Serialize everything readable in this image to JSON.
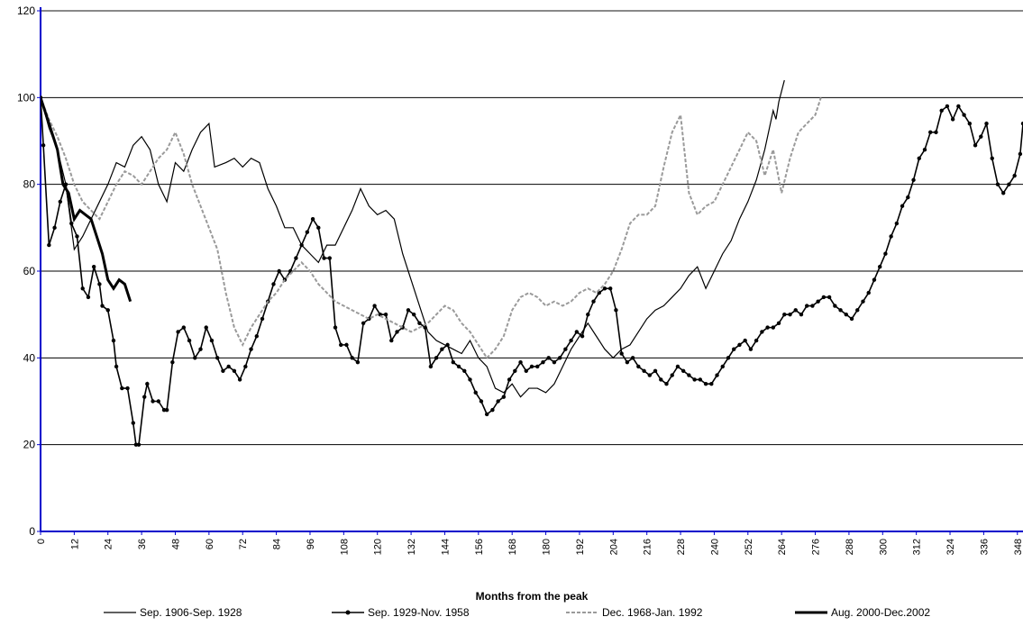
{
  "chart_data": {
    "type": "line",
    "x_label": "Months from the peak",
    "xlim": [
      0,
      350
    ],
    "ylim": [
      0,
      120
    ],
    "xticks": [
      0,
      12,
      24,
      36,
      48,
      60,
      72,
      84,
      96,
      108,
      120,
      132,
      144,
      156,
      168,
      180,
      192,
      204,
      216,
      228,
      240,
      252,
      264,
      276,
      288,
      300,
      312,
      324,
      336,
      348
    ],
    "yticks": [
      0,
      20,
      40,
      60,
      80,
      100,
      120
    ],
    "grid": true,
    "series": [
      {
        "name": "Sep. 1906-Sep. 1928",
        "color": "#000000",
        "line_width": 1.2,
        "markers": false,
        "dashed": false,
        "x": [
          0,
          3,
          6,
          9,
          12,
          15,
          18,
          21,
          24,
          27,
          30,
          33,
          36,
          39,
          42,
          45,
          48,
          51,
          54,
          57,
          60,
          62,
          66,
          69,
          72,
          75,
          78,
          81,
          84,
          87,
          90,
          93,
          96,
          99,
          102,
          105,
          108,
          111,
          114,
          117,
          120,
          123,
          126,
          129,
          132,
          135,
          138,
          141,
          144,
          147,
          150,
          153,
          156,
          159,
          162,
          165,
          168,
          171,
          174,
          177,
          180,
          183,
          186,
          189,
          192,
          195,
          198,
          201,
          204,
          207,
          210,
          213,
          216,
          219,
          222,
          225,
          228,
          231,
          234,
          237,
          240,
          243,
          246,
          249,
          252,
          255,
          258,
          261,
          262,
          263,
          265
        ],
        "values": [
          100,
          93,
          88,
          80,
          65,
          68,
          72,
          76,
          80,
          85,
          84,
          89,
          91,
          88,
          80,
          76,
          85,
          83,
          88,
          92,
          94,
          84,
          85,
          86,
          84,
          86,
          85,
          79,
          75,
          70,
          70,
          66,
          64,
          62,
          66,
          66,
          70,
          74,
          79,
          75,
          73,
          74,
          72,
          64,
          58,
          52,
          46,
          44,
          43,
          42,
          41,
          44,
          40,
          38,
          33,
          32,
          34,
          31,
          33,
          33,
          32,
          34,
          38,
          42,
          45,
          48,
          45,
          42,
          40,
          42,
          43,
          46,
          49,
          51,
          52,
          54,
          56,
          59,
          61,
          56,
          60,
          64,
          67,
          72,
          76,
          81,
          88,
          97,
          95,
          99,
          104
        ]
      },
      {
        "name": "Sep. 1929-Nov. 1958",
        "color": "#000000",
        "line_width": 1.6,
        "markers": true,
        "dashed": false,
        "x": [
          0,
          1,
          3,
          5,
          7,
          9,
          11,
          13,
          15,
          17,
          19,
          21,
          22,
          24,
          26,
          27,
          29,
          31,
          33,
          34,
          35,
          37,
          38,
          40,
          42,
          44,
          45,
          47,
          49,
          51,
          53,
          55,
          57,
          59,
          61,
          63,
          65,
          67,
          69,
          71,
          73,
          75,
          77,
          79,
          81,
          83,
          85,
          87,
          89,
          91,
          93,
          95,
          97,
          99,
          101,
          103,
          105,
          107,
          109,
          111,
          113,
          115,
          117,
          119,
          121,
          123,
          125,
          127,
          129,
          131,
          133,
          135,
          137,
          139,
          141,
          143,
          145,
          147,
          149,
          151,
          153,
          155,
          157,
          159,
          161,
          163,
          165,
          167,
          169,
          171,
          173,
          175,
          177,
          179,
          181,
          183,
          185,
          187,
          189,
          191,
          193,
          195,
          197,
          199,
          201,
          203,
          205,
          207,
          209,
          211,
          213,
          215,
          217,
          219,
          221,
          223,
          225,
          227,
          229,
          231,
          233,
          235,
          237,
          239,
          241,
          243,
          245,
          247,
          249,
          251,
          253,
          255,
          257,
          259,
          261,
          263,
          265,
          267,
          269,
          271,
          273,
          275,
          277,
          279,
          281,
          283,
          285,
          287,
          289,
          291,
          293,
          295,
          297,
          299,
          301,
          303,
          305,
          307,
          309,
          311,
          313,
          315,
          317,
          319,
          321,
          323,
          325,
          327,
          329,
          331,
          333,
          335,
          337,
          339,
          341,
          343,
          345,
          347,
          349,
          350
        ],
        "values": [
          100,
          89,
          66,
          70,
          76,
          80,
          71,
          68,
          56,
          54,
          61,
          57,
          52,
          51,
          44,
          38,
          33,
          33,
          25,
          20,
          20,
          31,
          34,
          30,
          30,
          28,
          28,
          39,
          46,
          47,
          44,
          40,
          42,
          47,
          44,
          40,
          37,
          38,
          37,
          35,
          38,
          42,
          45,
          49,
          53,
          57,
          60,
          58,
          60,
          63,
          66,
          69,
          72,
          70,
          63,
          63,
          47,
          43,
          43,
          40,
          39,
          48,
          49,
          52,
          50,
          50,
          44,
          46,
          47,
          51,
          50,
          48,
          47,
          38,
          40,
          42,
          43,
          39,
          38,
          37,
          35,
          32,
          30,
          27,
          28,
          30,
          31,
          35,
          37,
          39,
          37,
          38,
          38,
          39,
          40,
          39,
          40,
          42,
          44,
          46,
          45,
          50,
          53,
          55,
          56,
          56,
          51,
          41,
          39,
          40,
          38,
          37,
          36,
          37,
          35,
          34,
          36,
          38,
          37,
          36,
          35,
          35,
          34,
          34,
          36,
          38,
          40,
          42,
          43,
          44,
          42,
          44,
          46,
          47,
          47,
          48,
          50,
          50,
          51,
          50,
          52,
          52,
          53,
          54,
          54,
          52,
          51,
          50,
          49,
          51,
          53,
          55,
          58,
          61,
          64,
          68,
          71,
          75,
          77,
          81,
          86,
          88,
          92,
          92,
          97,
          98,
          95,
          98,
          96,
          94,
          89,
          91,
          94,
          86,
          80,
          78,
          80,
          82,
          87,
          94
        ]
      },
      {
        "name": "Dec. 1968-Jan. 1992",
        "color": "#9a9a9a",
        "line_width": 2,
        "markers": false,
        "dashed": true,
        "x": [
          0,
          3,
          6,
          9,
          12,
          15,
          18,
          21,
          24,
          27,
          30,
          33,
          36,
          39,
          42,
          45,
          48,
          51,
          54,
          57,
          60,
          63,
          66,
          69,
          72,
          75,
          78,
          81,
          84,
          87,
          90,
          93,
          96,
          99,
          102,
          105,
          108,
          111,
          114,
          117,
          120,
          123,
          126,
          129,
          132,
          135,
          138,
          141,
          144,
          147,
          150,
          153,
          156,
          159,
          162,
          165,
          168,
          171,
          174,
          177,
          180,
          183,
          186,
          189,
          192,
          195,
          198,
          201,
          204,
          207,
          210,
          213,
          216,
          219,
          222,
          225,
          228,
          231,
          234,
          237,
          240,
          243,
          246,
          249,
          252,
          255,
          258,
          261,
          264,
          267,
          270,
          273,
          276,
          278
        ],
        "values": [
          100,
          95,
          91,
          86,
          80,
          76,
          74,
          72,
          76,
          80,
          83,
          82,
          80,
          83,
          86,
          88,
          92,
          87,
          80,
          75,
          70,
          65,
          55,
          47,
          43,
          47,
          50,
          53,
          55,
          58,
          60,
          62,
          60,
          57,
          55,
          53,
          52,
          51,
          50,
          49,
          50,
          49,
          48,
          47,
          46,
          47,
          48,
          50,
          52,
          51,
          48,
          46,
          43,
          40,
          42,
          45,
          51,
          54,
          55,
          54,
          52,
          53,
          52,
          53,
          55,
          56,
          55,
          57,
          60,
          65,
          71,
          73,
          73,
          75,
          84,
          92,
          96,
          78,
          73,
          75,
          76,
          80,
          84,
          88,
          92,
          90,
          82,
          88,
          78,
          86,
          92,
          94,
          96,
          100
        ]
      },
      {
        "name": "Aug. 2000-Dec.2002",
        "color": "#000000",
        "line_width": 3,
        "markers": false,
        "dashed": false,
        "x": [
          0,
          2,
          4,
          6,
          8,
          10,
          12,
          14,
          16,
          18,
          20,
          22,
          24,
          26,
          28,
          30,
          32
        ],
        "values": [
          100,
          96,
          92,
          88,
          80,
          78,
          72,
          74,
          73,
          72,
          68,
          64,
          58,
          56,
          58,
          57,
          53
        ]
      }
    ]
  }
}
